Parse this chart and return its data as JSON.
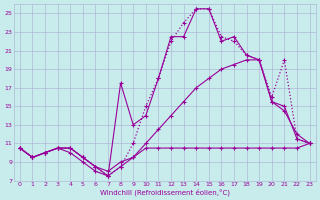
{
  "xlabel": "Windchill (Refroidissement éolien,°C)",
  "bg_color": "#c8ecec",
  "grid_color": "#b0b8d8",
  "line_color": "#990099",
  "xlim": [
    -0.5,
    23.5
  ],
  "ylim": [
    7,
    26
  ],
  "xticks": [
    0,
    1,
    2,
    3,
    4,
    5,
    6,
    7,
    8,
    9,
    10,
    11,
    12,
    13,
    14,
    15,
    16,
    17,
    18,
    19,
    20,
    21,
    22,
    23
  ],
  "yticks": [
    7,
    9,
    11,
    13,
    15,
    17,
    19,
    21,
    23,
    25
  ],
  "series": [
    {
      "x": [
        0,
        1,
        2,
        3,
        4,
        5,
        6,
        7,
        8,
        9,
        10,
        11,
        12,
        13,
        14,
        15,
        16,
        17,
        18,
        19,
        20,
        21,
        22,
        23
      ],
      "y": [
        10.5,
        9.5,
        10.0,
        10.5,
        10.5,
        9.5,
        8.5,
        8.0,
        9.0,
        9.5,
        10.5,
        10.5,
        10.5,
        10.5,
        10.5,
        10.5,
        10.5,
        10.5,
        10.5,
        10.5,
        10.5,
        10.5,
        10.5,
        11.0
      ]
    },
    {
      "x": [
        0,
        1,
        2,
        3,
        4,
        5,
        6,
        7,
        8,
        9,
        10,
        11,
        12,
        13,
        14,
        15,
        16,
        17,
        18,
        19,
        20,
        21,
        22,
        23
      ],
      "y": [
        10.5,
        9.5,
        10.0,
        10.5,
        10.5,
        9.5,
        8.5,
        7.5,
        8.5,
        11.0,
        15.0,
        18.0,
        22.0,
        24.0,
        25.5,
        25.5,
        22.5,
        22.0,
        20.5,
        20.0,
        16.0,
        20.0,
        11.5,
        11.0
      ]
    },
    {
      "x": [
        0,
        1,
        2,
        3,
        4,
        5,
        6,
        7,
        8,
        9,
        10,
        11,
        12,
        13,
        14,
        15,
        16,
        17,
        18,
        19,
        20,
        21,
        22,
        23
      ],
      "y": [
        10.5,
        9.5,
        10.0,
        10.5,
        10.0,
        9.0,
        8.0,
        7.5,
        17.5,
        13.0,
        14.0,
        18.0,
        22.5,
        22.5,
        25.5,
        25.5,
        22.0,
        22.5,
        20.5,
        20.0,
        15.5,
        14.5,
        12.0,
        11.0
      ]
    },
    {
      "x": [
        0,
        1,
        2,
        3,
        4,
        5,
        6,
        7,
        8,
        9,
        10,
        11,
        12,
        13,
        14,
        15,
        16,
        17,
        18,
        19,
        20,
        21,
        22,
        23
      ],
      "y": [
        10.5,
        9.5,
        10.0,
        10.5,
        10.5,
        9.5,
        8.5,
        7.5,
        8.5,
        9.5,
        11.0,
        12.5,
        14.0,
        15.5,
        17.0,
        18.0,
        19.0,
        19.5,
        20.0,
        20.0,
        15.5,
        15.0,
        11.5,
        11.0
      ]
    }
  ]
}
